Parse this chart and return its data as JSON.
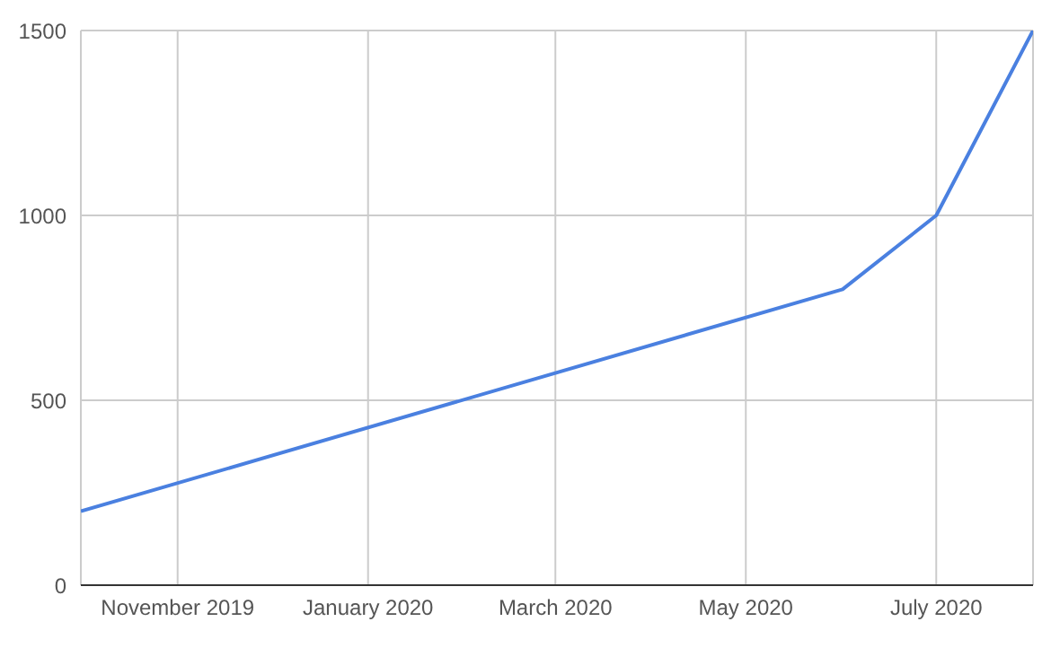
{
  "chart_data": {
    "type": "line",
    "x": [
      "2019-10-01",
      "2020-06-01",
      "2020-07-01",
      "2020-08-01"
    ],
    "series": [
      {
        "color": "#4a80e0",
        "values": [
          200,
          800,
          1000,
          1500
        ]
      }
    ],
    "xlim": [
      "2019-10-01",
      "2020-08-01"
    ],
    "xticks": [
      {
        "value": "2019-11-01",
        "label": "November 2019"
      },
      {
        "value": "2020-01-01",
        "label": "January 2020"
      },
      {
        "value": "2020-03-01",
        "label": "March 2020"
      },
      {
        "value": "2020-05-01",
        "label": "May 2020"
      },
      {
        "value": "2020-07-01",
        "label": "July 2020"
      }
    ],
    "ylim": [
      0,
      1500
    ],
    "yticks": [
      0,
      500,
      1000,
      1500
    ],
    "grid": true,
    "legend": false,
    "marker": "none",
    "line_style": "solid"
  }
}
